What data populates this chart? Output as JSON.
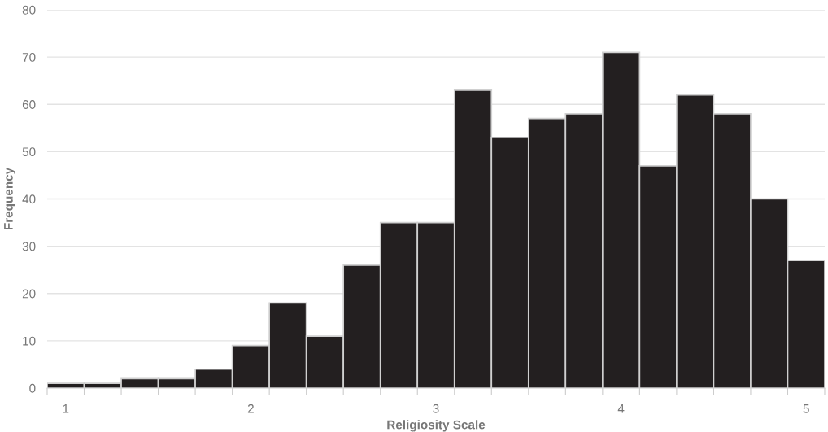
{
  "chart_data": {
    "type": "histogram",
    "xlabel": "Religiosity Scale",
    "ylabel": "Frequency",
    "color": "#231f20",
    "bins": [
      0.9,
      1.1,
      1.3,
      1.5,
      1.7,
      1.9,
      2.1,
      2.3,
      2.5,
      2.7,
      2.9,
      3.1,
      3.3,
      3.5,
      3.7,
      3.9,
      4.1,
      4.3,
      4.5,
      4.7,
      4.9,
      5.1
    ],
    "values": [
      1,
      1,
      2,
      2,
      4,
      9,
      18,
      11,
      26,
      35,
      35,
      63,
      53,
      57,
      58,
      71,
      47,
      62,
      58,
      40,
      27
    ],
    "xlim": [
      0.9,
      5.1
    ],
    "ylim": [
      0,
      80
    ],
    "yticks": [
      0,
      10,
      20,
      30,
      40,
      50,
      60,
      70,
      80
    ],
    "xticks": [
      {
        "value": 0.9,
        "label": null
      },
      1,
      {
        "value": 1.1,
        "label": null
      },
      {
        "value": 1.3,
        "label": null
      },
      {
        "value": 1.5,
        "label": null
      },
      {
        "value": 1.7,
        "label": null
      },
      {
        "value": 1.9,
        "label": null
      },
      2,
      {
        "value": 2.1,
        "label": null
      },
      {
        "value": 2.3,
        "label": null
      },
      {
        "value": 2.5,
        "label": null
      },
      {
        "value": 2.7,
        "label": null
      },
      {
        "value": 2.9,
        "label": null
      },
      3,
      {
        "value": 3.1,
        "label": null
      },
      {
        "value": 3.3,
        "label": null
      },
      {
        "value": 3.5,
        "label": null
      },
      {
        "value": 3.7,
        "label": null
      },
      {
        "value": 3.9,
        "label": null
      },
      4,
      {
        "value": 4.1,
        "label": null
      },
      {
        "value": 4.3,
        "label": null
      },
      {
        "value": 4.5,
        "label": null
      },
      {
        "value": 4.7,
        "label": null
      },
      {
        "value": 4.9,
        "label": null
      },
      5,
      {
        "value": 5.1,
        "label": null
      }
    ],
    "grid": "y"
  }
}
